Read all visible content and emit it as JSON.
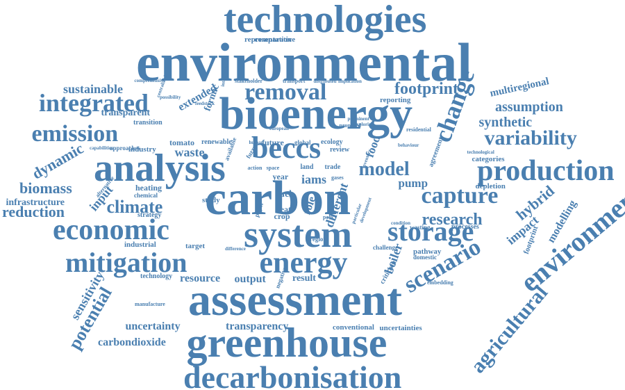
{
  "colors": {
    "word": "#4a7fb0",
    "background": "#ffffff"
  },
  "words": [
    "technologies",
    "environmental",
    "comparative",
    "representation",
    "integrated",
    "removal",
    "footprint",
    "multiregional",
    "bioenergy",
    "sustainable",
    "comprehensive",
    "centralized",
    "possibility",
    "extended",
    "international",
    "stakeholder",
    "transport",
    "distributed",
    "implication",
    "formic",
    "assumption",
    "reporting",
    "transparent",
    "feedstock",
    "change",
    "synthetic",
    "transition",
    "emission",
    "european",
    "proposed",
    "prominent",
    "exploring",
    "residential",
    "beccs",
    "variability",
    "dynamic",
    "capabilities",
    "approaches",
    "tomato",
    "renewable",
    "available",
    "industry",
    "waste",
    "fuzzy",
    "human",
    "future",
    "global",
    "ecology",
    "food",
    "behaviour",
    "agreement",
    "technological",
    "categories",
    "analysis",
    "review",
    "inventory",
    "model",
    "production",
    "action",
    "space",
    "land",
    "trade",
    "iams",
    "gases",
    "year",
    "biomass",
    "alternative",
    "heating",
    "infrastructure",
    "chemical",
    "carbon",
    "pump",
    "depletion",
    "input",
    "climate",
    "study",
    "fuel",
    "different",
    "capture",
    "hybrid",
    "reduction",
    "strategy",
    "policy",
    "paper",
    "heat",
    "crop",
    "role",
    "economic",
    "system",
    "research",
    "wasting",
    "processes",
    "storage",
    "impact",
    "footprint",
    "modelling",
    "particular",
    "development",
    "region",
    "condition",
    "industrial",
    "target",
    "difference",
    "challenge",
    "pathway",
    "mitigation",
    "energy",
    "boiler",
    "domestic",
    "scenario",
    "environment",
    "sensitivity",
    "technology",
    "resource",
    "output",
    "negative",
    "result",
    "criticism",
    "embedding",
    "assessment",
    "manufacture",
    "potential",
    "uncertainty",
    "transparency",
    "conventional",
    "uncertainties",
    "agricultural",
    "carbondioxide",
    "greenhouse",
    "decarbonisation"
  ]
}
